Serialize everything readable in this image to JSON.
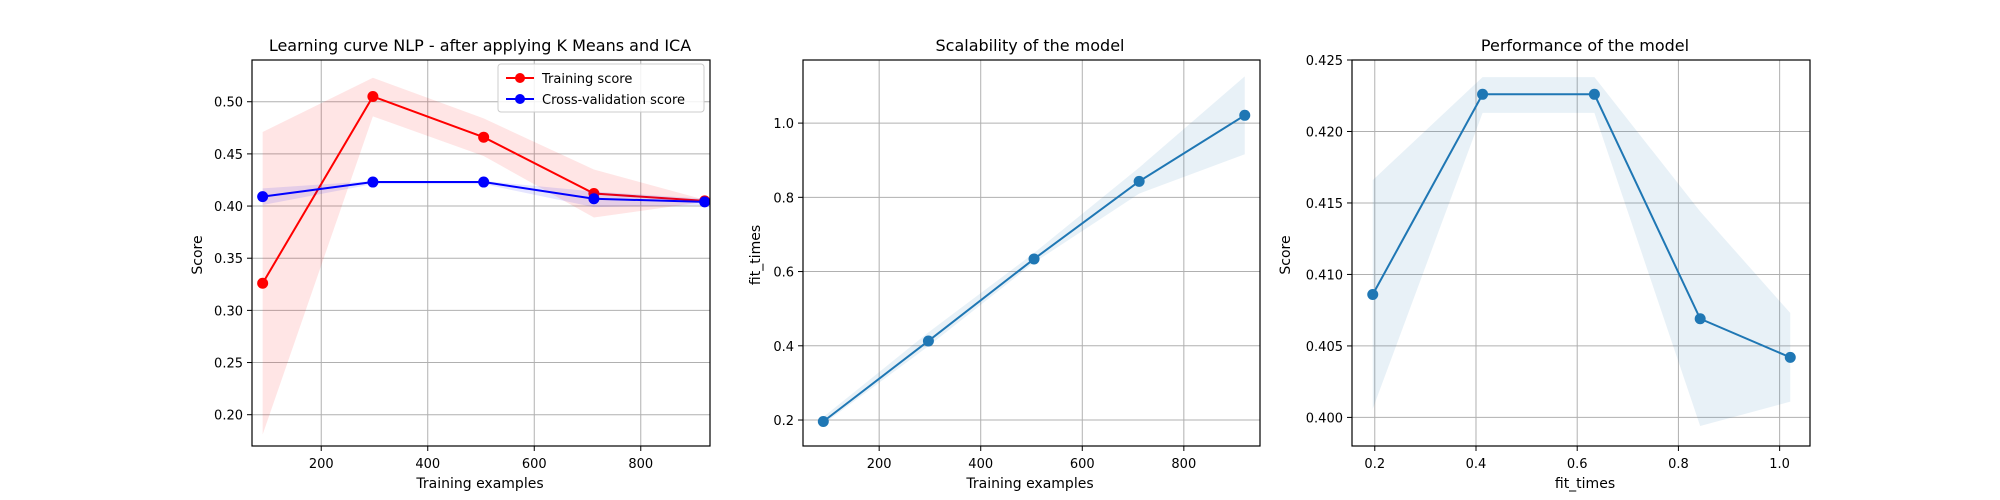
{
  "chart_data": [
    {
      "type": "line",
      "title": "Learning curve NLP - after applying K Means and ICA",
      "xlabel": "Training examples",
      "ylabel": "Score",
      "xlim": [
        70,
        930
      ],
      "ylim": [
        0.17,
        0.54
      ],
      "xticks": [
        200,
        400,
        600,
        800
      ],
      "xtick_labels": [
        "200",
        "400",
        "600",
        "800"
      ],
      "yticks": [
        0.2,
        0.25,
        0.3,
        0.35,
        0.4,
        0.45,
        0.5
      ],
      "ytick_labels": [
        "0.20",
        "0.25",
        "0.30",
        "0.35",
        "0.40",
        "0.45",
        "0.50"
      ],
      "grid": true,
      "legend": "upper right",
      "x": [
        90,
        297,
        505,
        712,
        920
      ],
      "series": [
        {
          "name": "Training score",
          "color": "#ff0000",
          "values": [
            0.326,
            0.505,
            0.466,
            0.412,
            0.405
          ],
          "band_lower": [
            0.181,
            0.486,
            0.448,
            0.389,
            0.404
          ],
          "band_upper": [
            0.471,
            0.523,
            0.484,
            0.435,
            0.406
          ]
        },
        {
          "name": "Cross-validation score",
          "color": "#0000ff",
          "values": [
            0.409,
            0.423,
            0.423,
            0.407,
            0.404
          ],
          "band_lower": [
            0.401,
            0.421,
            0.421,
            0.399,
            0.401
          ],
          "band_upper": [
            0.417,
            0.424,
            0.424,
            0.414,
            0.407
          ]
        }
      ]
    },
    {
      "type": "line",
      "title": "Scalability of the model",
      "xlabel": "Training examples",
      "ylabel": "fit_times",
      "xlim": [
        50,
        950
      ],
      "ylim": [
        0.13,
        1.17
      ],
      "xticks": [
        200,
        400,
        600,
        800
      ],
      "xtick_labels": [
        "200",
        "400",
        "600",
        "800"
      ],
      "yticks": [
        0.2,
        0.4,
        0.6,
        0.8,
        1.0
      ],
      "ytick_labels": [
        "0.2",
        "0.4",
        "0.6",
        "0.8",
        "1.0"
      ],
      "grid": true,
      "x": [
        90,
        297,
        505,
        712,
        920
      ],
      "series": [
        {
          "color": "#1f77b4",
          "values": [
            0.196,
            0.413,
            0.634,
            0.843,
            1.021
          ],
          "band_lower": [
            0.189,
            0.399,
            0.624,
            0.81,
            0.916
          ],
          "band_upper": [
            0.208,
            0.436,
            0.65,
            0.88,
            1.126
          ]
        }
      ]
    },
    {
      "type": "line",
      "title": "Performance of the model",
      "xlabel": "fit_times",
      "ylabel": "Score",
      "xlim": [
        0.155,
        1.06
      ],
      "ylim": [
        0.398,
        0.425
      ],
      "xticks": [
        0.2,
        0.4,
        0.6,
        0.8,
        1.0
      ],
      "xtick_labels": [
        "0.2",
        "0.4",
        "0.6",
        "0.8",
        "1.0"
      ],
      "yticks": [
        0.4,
        0.405,
        0.41,
        0.415,
        0.42,
        0.425
      ],
      "ytick_labels": [
        "0.400",
        "0.405",
        "0.410",
        "0.415",
        "0.420",
        "0.425"
      ],
      "grid": true,
      "x": [
        0.196,
        0.413,
        0.634,
        0.843,
        1.021
      ],
      "series": [
        {
          "color": "#1f77b4",
          "values": [
            0.4086,
            0.4226,
            0.4226,
            0.4069,
            0.4042
          ],
          "band_lower": [
            0.4006,
            0.4213,
            0.4213,
            0.3994,
            0.4011
          ],
          "band_upper": [
            0.4166,
            0.4238,
            0.4238,
            0.4144,
            0.4073
          ]
        }
      ]
    }
  ]
}
